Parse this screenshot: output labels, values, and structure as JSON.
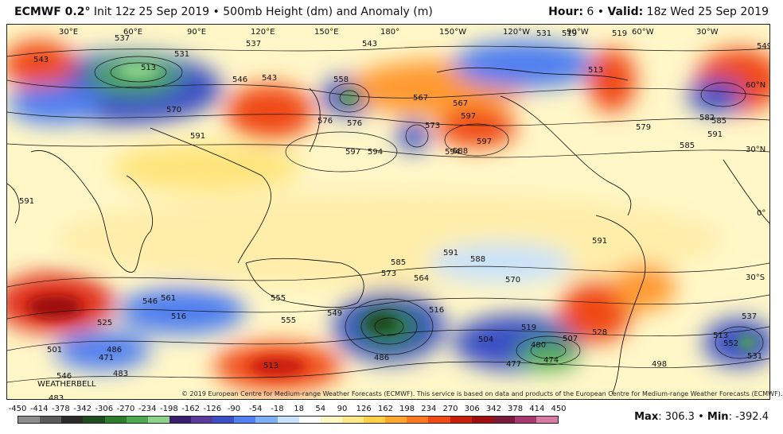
{
  "header": {
    "model": "ECMWF 0.2°",
    "init": "Init 12z 25 Sep 2019",
    "separator": "•",
    "product": "500mb Height (dm) and Anomaly (m)",
    "hour_label": "Hour:",
    "hour_value": "6",
    "valid_label": "Valid:",
    "valid_value": "18z Wed 25 Sep 2019"
  },
  "map": {
    "longitude_labels": [
      "30°E",
      "60°E",
      "90°E",
      "120°E",
      "150°E",
      "180°",
      "150°W",
      "120°W",
      "90°W",
      "60°W",
      "30°W"
    ],
    "latitude_labels": [
      "60°N",
      "30°N",
      "0°",
      "30°S"
    ],
    "height_labels": [
      "537",
      "537",
      "513",
      "531",
      "543",
      "546",
      "576",
      "576",
      "570",
      "591",
      "597",
      "594",
      "594",
      "597",
      "597",
      "588",
      "567",
      "573",
      "531",
      "513",
      "519",
      "519",
      "543",
      "549",
      "543",
      "558",
      "567",
      "585",
      "582",
      "585",
      "591",
      "591",
      "579",
      "591",
      "585",
      "588",
      "591",
      "573",
      "564",
      "570",
      "546",
      "561",
      "516",
      "525",
      "555",
      "549",
      "555",
      "486",
      "471",
      "483",
      "483",
      "501",
      "513",
      "516",
      "504",
      "519",
      "507",
      "486",
      "480",
      "474",
      "477",
      "498",
      "528",
      "513",
      "537",
      "552",
      "531",
      "546"
    ],
    "watermark": "WEATHERBELL",
    "copyright": "© 2019 European Centre for Medium-range Weather Forecasts (ECMWF). This service is based on data and products of the European Centre for Medium-range Weather Forecasts (ECMWF)."
  },
  "colorbar": {
    "ticks": [
      "-450",
      "-414",
      "-378",
      "-342",
      "-306",
      "-270",
      "-234",
      "-198",
      "-162",
      "-126",
      "-90",
      "-54",
      "-18",
      "18",
      "54",
      "90",
      "126",
      "162",
      "198",
      "234",
      "270",
      "306",
      "342",
      "378",
      "414",
      "450"
    ],
    "colors": [
      "#8c8c8c",
      "#5a5a5a",
      "#2a2a2a",
      "#1f4a1f",
      "#2e7d2e",
      "#4fa84f",
      "#8cd18c",
      "#3a1f6e",
      "#5b3a9e",
      "#3b4fc4",
      "#4f7ff0",
      "#7fb0f7",
      "#c8e2fb",
      "#ffffff",
      "#fff8c4",
      "#ffe88a",
      "#ffcf4a",
      "#ffa630",
      "#ff7a1f",
      "#f04a14",
      "#c81e0e",
      "#9e1010",
      "#7a1a3a",
      "#a63a6e",
      "#d67aa6"
    ],
    "max_label": "Max",
    "max_value": "306.3",
    "min_label": "Min",
    "min_value": "-392.4",
    "bullet": "•"
  }
}
